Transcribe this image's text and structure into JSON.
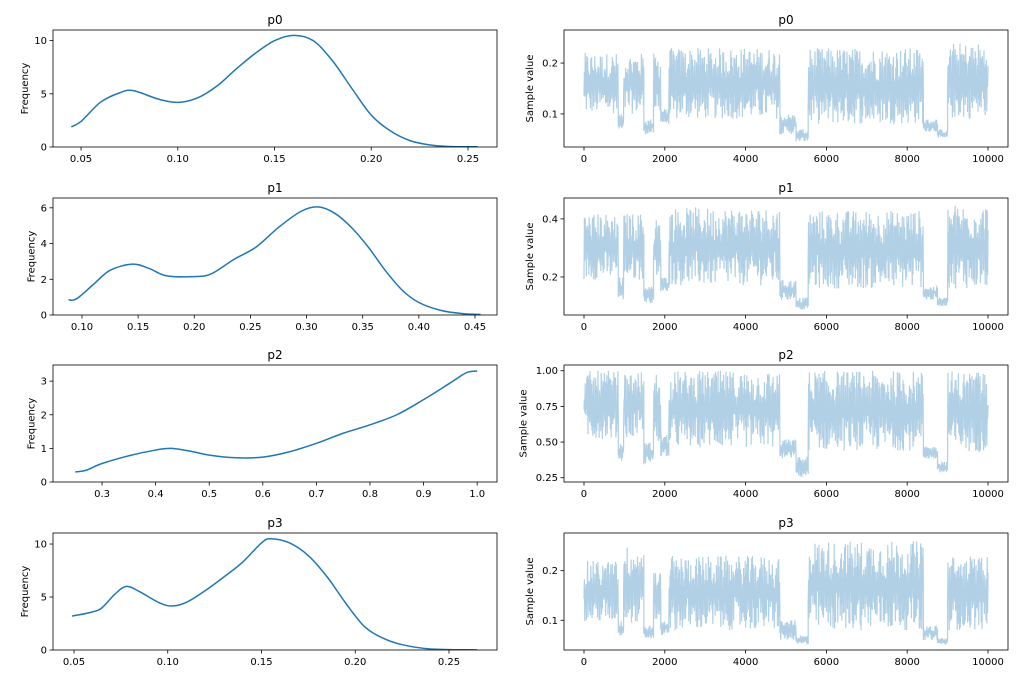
{
  "chart_data": [
    {
      "type": "line",
      "panel": "kde",
      "title": "p0",
      "ylabel": "Frequency",
      "xlim": [
        0.0355,
        0.265
      ],
      "ylim": [
        0,
        11.0
      ],
      "xticks": [
        "0.05",
        "0.10",
        "0.15",
        "0.20",
        "0.25"
      ],
      "xtick_values": [
        0.05,
        0.1,
        0.15,
        0.2,
        0.25
      ],
      "yticks": [
        "0",
        "5",
        "10"
      ],
      "ytick_values": [
        0,
        5,
        10
      ],
      "color": "#1f77b4",
      "x": [
        0.045,
        0.05,
        0.06,
        0.07,
        0.077,
        0.09,
        0.1,
        0.11,
        0.12,
        0.13,
        0.14,
        0.15,
        0.16,
        0.17,
        0.18,
        0.19,
        0.2,
        0.21,
        0.22,
        0.23,
        0.24,
        0.255
      ],
      "y": [
        1.9,
        2.4,
        4.2,
        5.1,
        5.3,
        4.5,
        4.2,
        4.6,
        5.7,
        7.3,
        8.8,
        10.0,
        10.5,
        10.0,
        8.1,
        5.5,
        3.0,
        1.5,
        0.6,
        0.2,
        0.05,
        0.02
      ]
    },
    {
      "type": "line",
      "panel": "trace",
      "title": "p0",
      "ylabel": "Sample value",
      "xlim": [
        -495,
        10495
      ],
      "ylim": [
        0.035,
        0.265
      ],
      "xticks": [
        "0",
        "2000",
        "4000",
        "6000",
        "8000",
        "10000"
      ],
      "xtick_values": [
        0,
        2000,
        4000,
        6000,
        8000,
        10000
      ],
      "yticks": [
        "0.1",
        "0.2"
      ],
      "ytick_values": [
        0.1,
        0.2
      ],
      "color": "#1f77b4",
      "alpha": 0.35,
      "envelope": [
        [
          0,
          850,
          0.1,
          0.22
        ],
        [
          850,
          980,
          0.065,
          0.1
        ],
        [
          980,
          1480,
          0.1,
          0.22
        ],
        [
          1480,
          1720,
          0.06,
          0.09
        ],
        [
          1720,
          1900,
          0.1,
          0.22
        ],
        [
          1900,
          2100,
          0.08,
          0.11
        ],
        [
          2100,
          4850,
          0.09,
          0.23
        ],
        [
          4850,
          5250,
          0.06,
          0.1
        ],
        [
          5250,
          5550,
          0.045,
          0.07
        ],
        [
          5550,
          8400,
          0.08,
          0.23
        ],
        [
          8400,
          8750,
          0.065,
          0.09
        ],
        [
          8750,
          9000,
          0.05,
          0.07
        ],
        [
          9000,
          10000,
          0.09,
          0.24
        ]
      ]
    },
    {
      "type": "line",
      "panel": "kde",
      "title": "p1",
      "ylabel": "Frequency",
      "xlim": [
        0.0742,
        0.4696
      ],
      "ylim": [
        0,
        6.55
      ],
      "xticks": [
        "0.10",
        "0.15",
        "0.20",
        "0.25",
        "0.30",
        "0.35",
        "0.40",
        "0.45"
      ],
      "xtick_values": [
        0.1,
        0.15,
        0.2,
        0.25,
        0.3,
        0.35,
        0.4,
        0.45
      ],
      "yticks": [
        "0",
        "2",
        "4",
        "6"
      ],
      "ytick_values": [
        0,
        2,
        4,
        6
      ],
      "color": "#1f77b4",
      "x": [
        0.088,
        0.095,
        0.11,
        0.125,
        0.145,
        0.16,
        0.175,
        0.2,
        0.215,
        0.235,
        0.255,
        0.275,
        0.295,
        0.31,
        0.325,
        0.34,
        0.355,
        0.37,
        0.385,
        0.4,
        0.42,
        0.44,
        0.455
      ],
      "y": [
        0.85,
        0.9,
        1.7,
        2.5,
        2.85,
        2.6,
        2.2,
        2.15,
        2.3,
        3.1,
        3.8,
        4.9,
        5.8,
        6.05,
        5.7,
        4.9,
        3.8,
        2.5,
        1.4,
        0.7,
        0.25,
        0.07,
        0.03
      ]
    },
    {
      "type": "line",
      "panel": "trace",
      "title": "p1",
      "ylabel": "Sample value",
      "xlim": [
        -495,
        10495
      ],
      "ylim": [
        0.069,
        0.472
      ],
      "xticks": [
        "0",
        "2000",
        "4000",
        "6000",
        "8000",
        "10000"
      ],
      "xtick_values": [
        0,
        2000,
        4000,
        6000,
        8000,
        10000
      ],
      "yticks": [
        "0.2",
        "0.4"
      ],
      "ytick_values": [
        0.2,
        0.4
      ],
      "color": "#1f77b4",
      "alpha": 0.35,
      "envelope": [
        [
          0,
          850,
          0.19,
          0.42
        ],
        [
          850,
          980,
          0.12,
          0.2
        ],
        [
          980,
          1480,
          0.19,
          0.42
        ],
        [
          1480,
          1720,
          0.11,
          0.17
        ],
        [
          1720,
          1900,
          0.19,
          0.4
        ],
        [
          1900,
          2100,
          0.15,
          0.2
        ],
        [
          2100,
          4850,
          0.17,
          0.44
        ],
        [
          4850,
          5250,
          0.12,
          0.19
        ],
        [
          5250,
          5550,
          0.085,
          0.13
        ],
        [
          5550,
          8400,
          0.16,
          0.43
        ],
        [
          8400,
          8750,
          0.12,
          0.17
        ],
        [
          8750,
          9000,
          0.1,
          0.13
        ],
        [
          9000,
          10000,
          0.16,
          0.45
        ]
      ]
    },
    {
      "type": "line",
      "panel": "kde",
      "title": "p2",
      "ylabel": "Frequency",
      "xlim": [
        0.2085,
        1.037
      ],
      "ylim": [
        0,
        3.48
      ],
      "xticks": [
        "0.3",
        "0.4",
        "0.5",
        "0.6",
        "0.7",
        "0.8",
        "0.9",
        "1.0"
      ],
      "xtick_values": [
        0.3,
        0.4,
        0.5,
        0.6,
        0.7,
        0.8,
        0.9,
        1.0
      ],
      "yticks": [
        "0",
        "1",
        "2",
        "3"
      ],
      "ytick_values": [
        0,
        1,
        2,
        3
      ],
      "color": "#1f77b4",
      "x": [
        0.25,
        0.27,
        0.3,
        0.35,
        0.4,
        0.43,
        0.47,
        0.5,
        0.55,
        0.6,
        0.65,
        0.7,
        0.75,
        0.8,
        0.85,
        0.9,
        0.95,
        0.98,
        1.0
      ],
      "y": [
        0.3,
        0.35,
        0.55,
        0.78,
        0.95,
        1.0,
        0.9,
        0.8,
        0.72,
        0.74,
        0.9,
        1.15,
        1.45,
        1.7,
        2.0,
        2.45,
        2.95,
        3.25,
        3.3
      ]
    },
    {
      "type": "line",
      "panel": "trace",
      "title": "p2",
      "ylabel": "Sample value",
      "xlim": [
        -495,
        10495
      ],
      "ylim": [
        0.22,
        1.04
      ],
      "xticks": [
        "0",
        "2000",
        "4000",
        "6000",
        "8000",
        "10000"
      ],
      "xtick_values": [
        0,
        2000,
        4000,
        6000,
        8000,
        10000
      ],
      "yticks": [
        "0.25",
        "0.50",
        "0.75",
        "1.00"
      ],
      "ytick_values": [
        0.25,
        0.5,
        0.75,
        1.0
      ],
      "color": "#1f77b4",
      "alpha": 0.35,
      "envelope": [
        [
          0,
          850,
          0.52,
          1.0
        ],
        [
          850,
          980,
          0.37,
          0.5
        ],
        [
          980,
          1480,
          0.52,
          1.0
        ],
        [
          1480,
          1720,
          0.34,
          0.5
        ],
        [
          1720,
          1900,
          0.45,
          1.0
        ],
        [
          1900,
          2100,
          0.4,
          0.55
        ],
        [
          2100,
          4850,
          0.46,
          1.0
        ],
        [
          4850,
          5250,
          0.38,
          0.52
        ],
        [
          5250,
          5550,
          0.25,
          0.4
        ],
        [
          5550,
          8400,
          0.44,
          1.0
        ],
        [
          8400,
          8750,
          0.38,
          0.47
        ],
        [
          8750,
          9000,
          0.28,
          0.37
        ],
        [
          9000,
          10000,
          0.43,
          1.0
        ]
      ]
    },
    {
      "type": "line",
      "panel": "kde",
      "title": "p3",
      "ylabel": "Frequency",
      "xlim": [
        0.0388,
        0.2756
      ],
      "ylim": [
        0,
        11.04
      ],
      "xticks": [
        "0.05",
        "0.10",
        "0.15",
        "0.20",
        "0.25"
      ],
      "xtick_values": [
        0.05,
        0.1,
        0.15,
        0.2,
        0.25
      ],
      "yticks": [
        "0",
        "5",
        "10"
      ],
      "ytick_values": [
        0,
        5,
        10
      ],
      "color": "#1f77b4",
      "x": [
        0.049,
        0.06,
        0.065,
        0.072,
        0.078,
        0.085,
        0.095,
        0.102,
        0.11,
        0.12,
        0.13,
        0.14,
        0.15,
        0.155,
        0.165,
        0.175,
        0.185,
        0.195,
        0.205,
        0.215,
        0.225,
        0.24,
        0.265
      ],
      "y": [
        3.2,
        3.6,
        4.0,
        5.3,
        6.0,
        5.5,
        4.5,
        4.15,
        4.5,
        5.6,
        6.9,
        8.3,
        10.1,
        10.5,
        10.1,
        8.9,
        6.9,
        4.4,
        2.2,
        1.1,
        0.5,
        0.1,
        0.01
      ]
    },
    {
      "type": "line",
      "panel": "trace",
      "title": "p3",
      "ylabel": "Sample value",
      "xlim": [
        -495,
        10495
      ],
      "ylim": [
        0.04,
        0.276
      ],
      "xticks": [
        "0",
        "2000",
        "4000",
        "6000",
        "8000",
        "10000"
      ],
      "xtick_values": [
        0,
        2000,
        4000,
        6000,
        8000,
        10000
      ],
      "yticks": [
        "0.1",
        "0.2"
      ],
      "ytick_values": [
        0.1,
        0.2
      ],
      "color": "#1f77b4",
      "alpha": 0.35,
      "envelope": [
        [
          0,
          850,
          0.095,
          0.22
        ],
        [
          850,
          980,
          0.065,
          0.1
        ],
        [
          980,
          1480,
          0.095,
          0.25
        ],
        [
          1480,
          1720,
          0.062,
          0.09
        ],
        [
          1720,
          1900,
          0.1,
          0.2
        ],
        [
          1900,
          2100,
          0.07,
          0.1
        ],
        [
          2100,
          4850,
          0.08,
          0.23
        ],
        [
          4850,
          5250,
          0.06,
          0.1
        ],
        [
          5250,
          5550,
          0.05,
          0.07
        ],
        [
          5550,
          8400,
          0.08,
          0.26
        ],
        [
          8400,
          8750,
          0.06,
          0.09
        ],
        [
          8750,
          9000,
          0.05,
          0.065
        ],
        [
          9000,
          10000,
          0.08,
          0.23
        ]
      ]
    }
  ]
}
